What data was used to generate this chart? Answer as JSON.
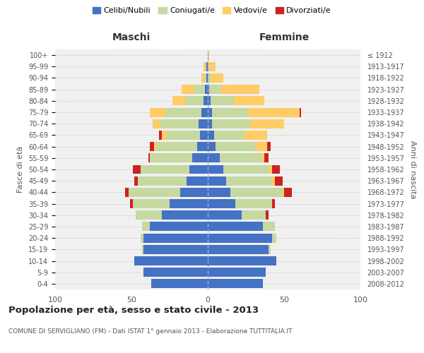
{
  "age_groups": [
    "0-4",
    "5-9",
    "10-14",
    "15-19",
    "20-24",
    "25-29",
    "30-34",
    "35-39",
    "40-44",
    "45-49",
    "50-54",
    "55-59",
    "60-64",
    "65-69",
    "70-74",
    "75-79",
    "80-84",
    "85-89",
    "90-94",
    "95-99",
    "100+"
  ],
  "birth_years": [
    "2008-2012",
    "2003-2007",
    "1998-2002",
    "1993-1997",
    "1988-1992",
    "1983-1987",
    "1978-1982",
    "1973-1977",
    "1968-1972",
    "1963-1967",
    "1958-1962",
    "1953-1957",
    "1948-1952",
    "1943-1947",
    "1938-1942",
    "1933-1937",
    "1928-1932",
    "1923-1927",
    "1918-1922",
    "1913-1917",
    "≤ 1912"
  ],
  "colors": {
    "celibi": "#4472C4",
    "coniugati": "#C5D9A0",
    "vedovi": "#FFCC66",
    "divorziati": "#CC2222",
    "background": "#FFFFFF",
    "chart_bg": "#F0F0F0",
    "grid": "#CCCCCC"
  },
  "maschi": {
    "celibi": [
      37,
      42,
      48,
      42,
      42,
      38,
      30,
      25,
      18,
      14,
      12,
      10,
      7,
      5,
      6,
      4,
      3,
      2,
      1,
      1,
      0
    ],
    "coniugati": [
      0,
      0,
      0,
      1,
      2,
      5,
      17,
      24,
      34,
      32,
      32,
      28,
      27,
      22,
      25,
      24,
      12,
      7,
      1,
      0,
      0
    ],
    "vedovi": [
      0,
      0,
      0,
      0,
      0,
      0,
      0,
      0,
      0,
      0,
      0,
      0,
      1,
      3,
      5,
      10,
      8,
      8,
      2,
      2,
      0
    ],
    "divorziati": [
      0,
      0,
      0,
      0,
      0,
      0,
      0,
      2,
      2,
      2,
      5,
      1,
      3,
      2,
      0,
      0,
      0,
      0,
      0,
      0,
      0
    ]
  },
  "femmine": {
    "celibi": [
      36,
      38,
      45,
      40,
      42,
      36,
      22,
      18,
      15,
      12,
      10,
      8,
      5,
      4,
      3,
      3,
      2,
      1,
      0,
      0,
      0
    ],
    "coniugati": [
      0,
      0,
      0,
      1,
      3,
      8,
      16,
      24,
      34,
      30,
      30,
      27,
      26,
      20,
      25,
      24,
      15,
      8,
      2,
      1,
      0
    ],
    "vedovi": [
      0,
      0,
      0,
      0,
      0,
      0,
      0,
      0,
      1,
      2,
      2,
      2,
      8,
      15,
      22,
      33,
      20,
      25,
      8,
      4,
      1
    ],
    "divorziati": [
      0,
      0,
      0,
      0,
      0,
      0,
      2,
      2,
      5,
      5,
      5,
      3,
      2,
      0,
      0,
      1,
      0,
      0,
      0,
      0,
      0
    ]
  },
  "title": "Popolazione per età, sesso e stato civile - 2013",
  "subtitle": "COMUNE DI SERVIGLIANO (FM) - Dati ISTAT 1° gennaio 2013 - Elaborazione TUTTITALIA.IT",
  "xlabel_left": "Maschi",
  "xlabel_right": "Femmine",
  "ylabel_left": "Fasce di età",
  "ylabel_right": "Anni di nascita",
  "xlim": 100,
  "legend_labels": [
    "Celibi/Nubili",
    "Coniugati/e",
    "Vedovi/e",
    "Divorziati/e"
  ]
}
